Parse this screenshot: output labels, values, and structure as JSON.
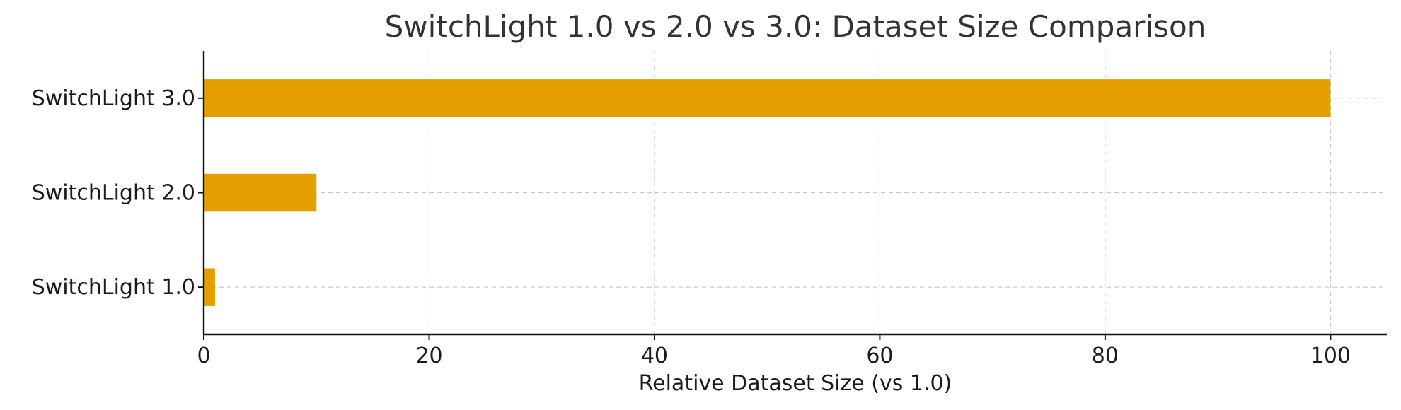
{
  "chart_data": {
    "type": "bar",
    "orientation": "horizontal",
    "title": "SwitchLight 1.0 vs 2.0 vs 3.0: Dataset Size Comparison",
    "xlabel": "Relative Dataset Size (vs 1.0)",
    "ylabel": "",
    "categories": [
      "SwitchLight 1.0",
      "SwitchLight 2.0",
      "SwitchLight 3.0"
    ],
    "values": [
      1,
      10,
      100
    ],
    "xlim": [
      0,
      105
    ],
    "xticks": [
      0,
      20,
      40,
      60,
      80,
      100
    ],
    "grid": true,
    "bar_color": "#E69F00"
  }
}
